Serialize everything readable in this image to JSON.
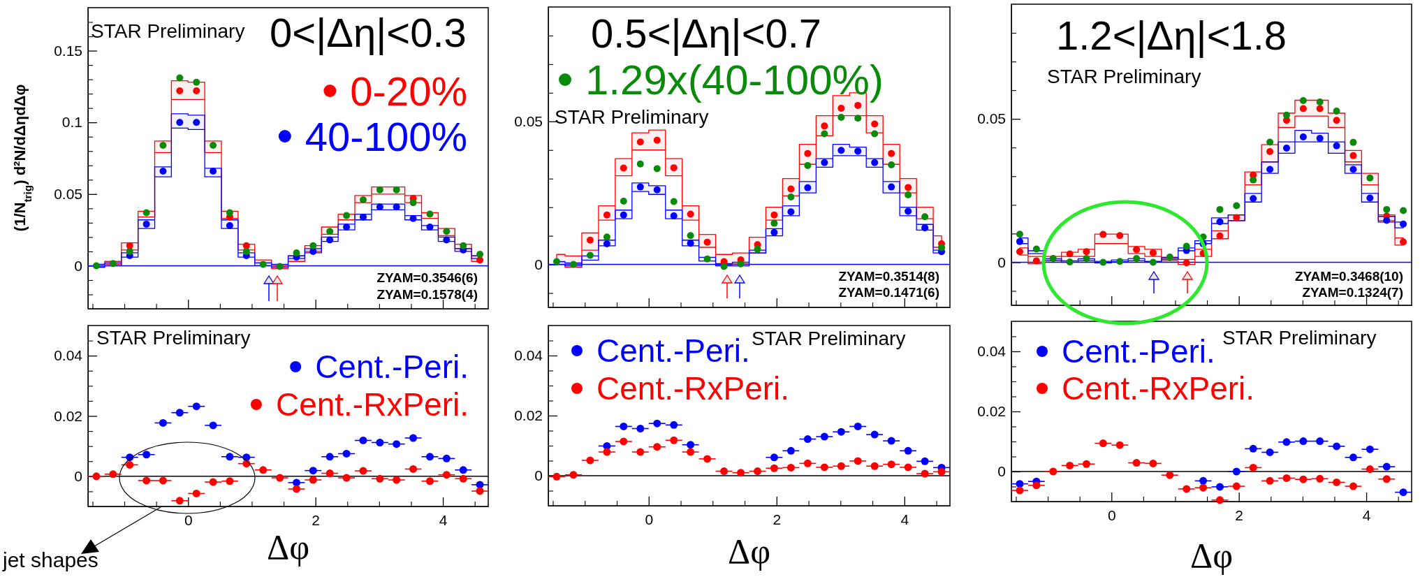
{
  "chart_data": [
    {
      "type": "scatter",
      "title": "0<|Δη|<0.3",
      "ylabel": "(1/N$_{trig}$) d²N/dΔηdΔφ",
      "xlim": [
        -1.571,
        4.712
      ],
      "ylim": [
        -0.03,
        0.18
      ],
      "tick_labels": "y",
      "marker": "circle",
      "legend": "top right",
      "grid": false,
      "xticks": [
        {
          "value": -1.5,
          "label": null
        },
        {
          "value": -1,
          "label": null
        },
        {
          "value": -0.5,
          "label": null
        },
        0,
        {
          "value": 0.5,
          "label": null
        },
        {
          "value": 1,
          "label": null
        },
        {
          "value": 1.5,
          "label": null
        },
        2,
        {
          "value": 2.5,
          "label": null
        },
        {
          "value": 3,
          "label": null
        },
        {
          "value": 3.5,
          "label": null
        },
        4,
        {
          "value": 4.5,
          "label": null
        }
      ],
      "yticks": [
        {
          "value": -0.02,
          "label": null
        },
        {
          "value": -0.01,
          "label": null
        },
        0,
        {
          "value": 0.01,
          "label": null
        },
        {
          "value": 0.02,
          "label": null
        },
        {
          "value": 0.03,
          "label": null
        },
        {
          "value": 0.04,
          "label": null
        },
        0.05,
        {
          "value": 0.06,
          "label": null
        },
        {
          "value": 0.07,
          "label": null
        },
        {
          "value": 0.08,
          "label": null
        },
        {
          "value": 0.09,
          "label": null
        },
        0.1,
        {
          "value": 0.11,
          "label": null
        },
        {
          "value": 0.12,
          "label": null
        },
        {
          "value": 0.13,
          "label": null
        },
        {
          "value": 0.14,
          "label": null
        },
        0.15,
        {
          "value": 0.16,
          "label": null
        },
        {
          "value": 0.17,
          "label": null
        }
      ],
      "x": [
        -1.44,
        -1.178,
        -0.916,
        -0.654,
        -0.393,
        -0.131,
        0.131,
        0.393,
        0.654,
        0.916,
        1.178,
        1.44,
        1.702,
        1.963,
        2.225,
        2.487,
        2.749,
        3.011,
        3.272,
        3.534,
        3.796,
        4.058,
        4.32,
        4.581
      ],
      "ref_lines": [
        {
          "axis": "y",
          "value": 0,
          "color": "#0000ff"
        }
      ],
      "annotations": [
        "STAR Preliminary",
        "ZYAM=0.3546(6)",
        "ZYAM=0.1578(4)"
      ],
      "series": [
        {
          "name": "0-20%",
          "color": "#ff0000",
          "values": [
            null,
            null,
            0.014,
            null,
            null,
            0.122,
            0.122,
            null,
            0.034,
            0.014,
            null,
            null,
            null,
            null,
            null,
            null,
            null,
            null,
            null,
            0.047,
            null,
            null,
            null,
            0.004
          ],
          "lower": [
            -0.001,
            0.001,
            0.011,
            0.034,
            0.079,
            0.116,
            0.116,
            0.079,
            0.033,
            0.011,
            0.002,
            -0.002,
            0.003,
            0.01,
            0.022,
            0.032,
            0.044,
            0.05,
            0.05,
            0.044,
            0.033,
            0.021,
            0.012,
            0.003
          ],
          "upper": [
            0.001,
            0.003,
            0.016,
            0.038,
            0.087,
            0.129,
            0.128,
            0.087,
            0.038,
            0.015,
            0.004,
            0,
            0.007,
            0.014,
            0.027,
            0.036,
            0.049,
            0.055,
            0.055,
            0.049,
            0.037,
            0.026,
            0.015,
            0.007
          ]
        },
        {
          "name": "40-100%",
          "color": "#0000ff",
          "values": [
            null,
            null,
            0.007,
            0.029,
            0.066,
            0.1,
            0.1,
            0.066,
            0.028,
            0.007,
            null,
            null,
            0.006,
            0.01,
            0.018,
            0.027,
            0.034,
            0.041,
            0.041,
            0.033,
            0.027,
            0.018,
            0.011,
            null
          ],
          "lower": [
            -0.001,
            0,
            0.006,
            0.026,
            0.062,
            0.096,
            0.095,
            0.062,
            0.026,
            0.006,
            0,
            -0.001,
            0.005,
            0.009,
            0.017,
            0.025,
            0.032,
            0.039,
            0.039,
            0.032,
            0.025,
            0.017,
            0.01,
            0.005
          ],
          "upper": [
            0.001,
            0.002,
            0.009,
            0.032,
            0.069,
            0.106,
            0.105,
            0.068,
            0.032,
            0.009,
            0.002,
            0.001,
            0.007,
            0.012,
            0.02,
            0.029,
            0.036,
            0.043,
            0.043,
            0.035,
            0.028,
            0.02,
            0.012,
            0.007
          ]
        },
        {
          "color": "#0a8a0a",
          "values": [
            0,
            0.0015,
            0.01,
            0.037,
            0.084,
            0.131,
            0.128,
            0.084,
            0.037,
            0.01,
            0.001,
            -0.0005,
            0.009,
            0.014,
            0.024,
            0.035,
            0.046,
            0.053,
            0.053,
            0.044,
            0.036,
            0.024,
            0.014,
            0.008
          ]
        }
      ]
    },
    {
      "type": "scatter",
      "title": "0.5<|Δη|<0.7",
      "xlim": [
        -1.571,
        4.712
      ],
      "ylim": [
        -0.015,
        0.09
      ],
      "tick_labels": "y",
      "marker": "circle",
      "legend": "top left",
      "grid": false,
      "xticks": [
        {
          "value": -1.5,
          "label": null
        },
        {
          "value": -1,
          "label": null
        },
        {
          "value": -0.5,
          "label": null
        },
        0,
        {
          "value": 0.5,
          "label": null
        },
        {
          "value": 1,
          "label": null
        },
        {
          "value": 1.5,
          "label": null
        },
        2,
        {
          "value": 2.5,
          "label": null
        },
        {
          "value": 3,
          "label": null
        },
        {
          "value": 3.5,
          "label": null
        },
        4,
        {
          "value": 4.5,
          "label": null
        }
      ],
      "yticks": [
        {
          "value": -0.01,
          "label": null
        },
        0,
        {
          "value": 0.01,
          "label": null
        },
        {
          "value": 0.02,
          "label": null
        },
        {
          "value": 0.03,
          "label": null
        },
        {
          "value": 0.04,
          "label": null
        },
        0.05,
        {
          "value": 0.06,
          "label": null
        },
        {
          "value": 0.07,
          "label": null
        },
        {
          "value": 0.08,
          "label": null
        }
      ],
      "x": [
        -1.44,
        -1.178,
        -0.916,
        -0.654,
        -0.393,
        -0.131,
        0.131,
        0.393,
        0.654,
        0.916,
        1.178,
        1.44,
        1.702,
        1.963,
        2.225,
        2.487,
        2.749,
        3.011,
        3.272,
        3.534,
        3.796,
        4.058,
        4.32,
        4.581
      ],
      "ref_lines": [
        {
          "axis": "y",
          "value": 0,
          "color": "#0000ff"
        }
      ],
      "annotations": [
        "STAR Preliminary",
        "ZYAM=0.3514(8)",
        "ZYAM=0.1471(6)"
      ],
      "series": [
        {
          "color": "#ff0000",
          "values": [
            null,
            null,
            0.0085,
            0.0173,
            0.0337,
            0.0428,
            0.0434,
            0.0338,
            0.0176,
            0.0078,
            0.001,
            0.0016,
            0.0069,
            0.0173,
            0.0264,
            0.0388,
            0.0484,
            0.0546,
            0.0556,
            0.0491,
            0.0388,
            0.0269,
            null,
            0.0072
          ],
          "lower": [
            0,
            -0.001,
            0.005,
            0.0155,
            0.031,
            0.04,
            0.04,
            0.031,
            0.0155,
            0.006,
            -0.0003,
            0.0002,
            0.004,
            0.0155,
            0.024,
            0.035,
            0.045,
            0.052,
            0.052,
            0.046,
            0.035,
            0.025,
            0.016,
            0.006
          ],
          "upper": [
            0.0035,
            0.003,
            0.011,
            0.0205,
            0.037,
            0.046,
            0.047,
            0.037,
            0.0205,
            0.0105,
            0.0035,
            0.004,
            0.0095,
            0.02,
            0.03,
            0.042,
            0.052,
            0.059,
            0.06,
            0.052,
            0.042,
            0.03,
            0.02,
            0.01
          ]
        },
        {
          "color": "#0000ff",
          "values": [
            null,
            null,
            null,
            0.0072,
            0.0173,
            0.0271,
            0.0261,
            0.017,
            0.0074,
            null,
            null,
            null,
            null,
            0.0112,
            0.0184,
            0.0268,
            0.0356,
            0.0399,
            0.0396,
            0.0356,
            0.0271,
            0.0186,
            0.0128,
            0.0045
          ],
          "lower": [
            0,
            -0.0005,
            0.0015,
            0.0065,
            0.016,
            0.0255,
            0.0245,
            0.016,
            0.0065,
            0.0012,
            -0.0005,
            -0.0005,
            0.004,
            0.01,
            0.017,
            0.025,
            0.034,
            0.038,
            0.038,
            0.034,
            0.025,
            0.017,
            0.012,
            0.004
          ],
          "upper": [
            0.001,
            0.0005,
            0.003,
            0.0085,
            0.019,
            0.0285,
            0.0275,
            0.019,
            0.0085,
            0.0025,
            0.0003,
            0.0008,
            0.005,
            0.0125,
            0.0205,
            0.029,
            0.037,
            0.042,
            0.041,
            0.037,
            0.029,
            0.02,
            0.014,
            0.005
          ]
        },
        {
          "name": "1.29x(40-100%)",
          "color": "#0a8a0a",
          "values": [
            0.001,
            0,
            0.0032,
            0.0096,
            0.0221,
            0.0351,
            0.0335,
            0.022,
            0.0101,
            0.0019,
            -0.0007,
            0.0002,
            0.0053,
            0.0144,
            0.0236,
            0.0346,
            0.0457,
            0.0514,
            0.0511,
            0.0457,
            0.0348,
            0.0243,
            0.0167,
            0.0059
          ]
        }
      ]
    },
    {
      "type": "scatter",
      "title": "1.2<|Δη|<1.8",
      "xlim": [
        -1.571,
        4.712
      ],
      "ylim": [
        -0.015,
        0.09
      ],
      "tick_labels": "y",
      "marker": "circle",
      "grid": false,
      "xticks": [
        {
          "value": -1.5,
          "label": null
        },
        {
          "value": -1,
          "label": null
        },
        {
          "value": -0.5,
          "label": null
        },
        0,
        {
          "value": 0.5,
          "label": null
        },
        {
          "value": 1,
          "label": null
        },
        {
          "value": 1.5,
          "label": null
        },
        2,
        {
          "value": 2.5,
          "label": null
        },
        {
          "value": 3,
          "label": null
        },
        {
          "value": 3.5,
          "label": null
        },
        4,
        {
          "value": 4.5,
          "label": null
        }
      ],
      "yticks": [
        {
          "value": -0.01,
          "label": null
        },
        0,
        {
          "value": 0.01,
          "label": null
        },
        {
          "value": 0.02,
          "label": null
        },
        {
          "value": 0.03,
          "label": null
        },
        {
          "value": 0.04,
          "label": null
        },
        0.05,
        {
          "value": 0.06,
          "label": null
        },
        {
          "value": 0.07,
          "label": null
        },
        {
          "value": 0.08,
          "label": null
        }
      ],
      "x": [
        -1.44,
        -1.178,
        -0.916,
        -0.654,
        -0.393,
        -0.131,
        0.131,
        0.393,
        0.654,
        0.916,
        1.178,
        1.44,
        1.702,
        1.963,
        2.225,
        2.487,
        2.749,
        3.011,
        3.272,
        3.534,
        3.796,
        4.058,
        4.32,
        4.581
      ],
      "ref_lines": [
        {
          "axis": "y",
          "value": 0,
          "color": "#0000ff"
        }
      ],
      "annotations": [
        "STAR Preliminary",
        "ZYAM=0.3468(10)",
        "ZYAM=0.1324(7)"
      ],
      "series": [
        {
          "color": "#ff0000",
          "values": [
            0.0037,
            0.0005,
            null,
            0.0029,
            0.0037,
            0.0097,
            0.0093,
            0.0044,
            0.0033,
            null,
            -0.0002,
            0.0031,
            0.0092,
            0.0156,
            0.0304,
            0.0386,
            0.0495,
            0.0536,
            0.0536,
            0.0495,
            0.0372,
            null,
            0.0161,
            0.0071
          ],
          "lower": [
            0.0025,
            -0.0005,
            0.0005,
            0.002,
            0.002,
            0.0065,
            0.0065,
            0.003,
            0.002,
            0.0005,
            -0.0008,
            0.002,
            0.0082,
            0.0145,
            0.027,
            0.035,
            0.047,
            0.051,
            0.051,
            0.047,
            0.035,
            0.027,
            0.0145,
            0.006
          ],
          "upper": [
            0.005,
            0.002,
            0.002,
            0.0035,
            0.0045,
            0.0098,
            0.0098,
            0.0055,
            0.0045,
            0.0018,
            0.001,
            0.0045,
            0.011,
            0.0165,
            0.0315,
            0.041,
            0.052,
            0.0565,
            0.0565,
            0.052,
            0.039,
            0.031,
            0.0165,
            0.0085
          ]
        },
        {
          "color": "#0000ff",
          "values": [
            0.0072,
            null,
            null,
            null,
            null,
            null,
            null,
            null,
            null,
            null,
            0.0041,
            0.0064,
            0.0141,
            null,
            0.0222,
            0.0324,
            0.0398,
            0.0437,
            0.0432,
            0.0406,
            0.0324,
            0.0224,
            0.0146,
            0.0133
          ],
          "lower": [
            0.0065,
            0.003,
            0.0005,
            0,
            0.0005,
            -0.0002,
            0.0002,
            0.0005,
            0,
            0.001,
            0.004,
            0.0065,
            0.0135,
            0.0145,
            0.021,
            0.031,
            0.038,
            0.042,
            0.042,
            0.038,
            0.031,
            0.021,
            0.014,
            0.012
          ],
          "upper": [
            0.0085,
            0.004,
            0.0012,
            0.0005,
            0.0012,
            0.0003,
            0.0008,
            0.0013,
            0.0003,
            0.0015,
            0.005,
            0.0075,
            0.0155,
            0.0165,
            0.024,
            0.035,
            0.042,
            0.046,
            0.045,
            0.042,
            0.034,
            0.024,
            0.016,
            0.014
          ]
        },
        {
          "color": "#0a8a0a",
          "values": [
            0.0098,
            0.0046,
            0.0013,
            0.0001,
            0.0013,
            0,
            0.0003,
            0.0013,
            0,
            0.0018,
            0.0056,
            0.0088,
            0.0184,
            0.0197,
            0.0287,
            0.0419,
            0.0513,
            0.0564,
            0.0559,
            0.0527,
            0.0418,
            0.0294,
            0.0184,
            0.018
          ]
        }
      ]
    },
    {
      "type": "scatter",
      "xlabel": "Δφ",
      "xlim": [
        -1.571,
        4.712
      ],
      "ylim": [
        -0.01,
        0.05
      ],
      "marker": "circle",
      "legend": "top right",
      "grid": false,
      "xticks": [
        {
          "value": -1.5,
          "label": null
        },
        {
          "value": -1,
          "label": null
        },
        {
          "value": -0.5,
          "label": null
        },
        0,
        {
          "value": 0.5,
          "label": null
        },
        {
          "value": 1,
          "label": null
        },
        {
          "value": 1.5,
          "label": null
        },
        2,
        {
          "value": 2.5,
          "label": null
        },
        {
          "value": 3,
          "label": null
        },
        {
          "value": 3.5,
          "label": null
        },
        4,
        {
          "value": 4.5,
          "label": null
        }
      ],
      "yticks": [
        {
          "value": -0.005,
          "label": null
        },
        0,
        {
          "value": 0.005,
          "label": null
        },
        {
          "value": 0.01,
          "label": null
        },
        {
          "value": 0.015,
          "label": null
        },
        0.02,
        {
          "value": 0.025,
          "label": null
        },
        {
          "value": 0.03,
          "label": null
        },
        {
          "value": 0.035,
          "label": null
        },
        0.04,
        {
          "value": 0.045,
          "label": null
        }
      ],
      "x": [
        -1.44,
        -1.178,
        -0.916,
        -0.654,
        -0.393,
        -0.131,
        0.131,
        0.393,
        0.654,
        0.916,
        1.178,
        1.44,
        1.702,
        1.963,
        2.225,
        2.487,
        2.749,
        3.011,
        3.272,
        3.534,
        3.796,
        4.058,
        4.32,
        4.581
      ],
      "ref_lines": [
        {
          "axis": "y",
          "value": 0,
          "color": "#000000"
        }
      ],
      "annotations": [
        "STAR Preliminary",
        "jet shapes"
      ],
      "series": [
        {
          "name": "Cent.-Peri.",
          "color": "#0000ff",
          "values": [
            null,
            null,
            0.0063,
            0.0072,
            0.0177,
            0.0211,
            0.0232,
            0.0169,
            0.0065,
            0.0063,
            null,
            null,
            -0.0021,
            0.0019,
            0.0065,
            0.0075,
            0.0119,
            0.0112,
            0.0107,
            0.0127,
            0.0065,
            0.0059,
            0.0021,
            -0.0028
          ],
          "xerrors": [
            null,
            null,
            0.131,
            0.131,
            0.131,
            0.131,
            0.131,
            0.131,
            0.131,
            0.131,
            null,
            null,
            0.131,
            0.131,
            0.131,
            0.131,
            0.131,
            0.131,
            0.131,
            0.131,
            0.131,
            0.131,
            0.131,
            0.131
          ]
        },
        {
          "name": "Cent.-RxPeri.",
          "color": "#ff0000",
          "values": [
            0,
            0.0007,
            0.0038,
            -0.0014,
            -0.0014,
            -0.0081,
            -0.0057,
            -0.0019,
            -0.0016,
            0.0042,
            0.0021,
            -0.0005,
            -0.0042,
            -0.0012,
            0.001,
            -0.0005,
            0.0018,
            -0.0008,
            -0.0012,
            0.0024,
            -0.0016,
            0.0005,
            -0.0008,
            -0.0049
          ],
          "xerrors": [
            0.131,
            0.131,
            0.131,
            0.131,
            0.131,
            0.131,
            0.131,
            0.131,
            0.131,
            0.131,
            0.131,
            0.131,
            0.131,
            0.131,
            0.131,
            0.131,
            0.131,
            0.131,
            0.131,
            0.131,
            0.131,
            0.131,
            0.131,
            0.131
          ]
        }
      ]
    },
    {
      "type": "scatter",
      "xlabel": "Δφ",
      "xlim": [
        -1.571,
        4.712
      ],
      "ylim": [
        -0.01,
        0.05
      ],
      "marker": "circle",
      "legend": "top left",
      "grid": false,
      "xticks": [
        {
          "value": -1.5,
          "label": null
        },
        {
          "value": -1,
          "label": null
        },
        {
          "value": -0.5,
          "label": null
        },
        0,
        {
          "value": 0.5,
          "label": null
        },
        {
          "value": 1,
          "label": null
        },
        {
          "value": 1.5,
          "label": null
        },
        2,
        {
          "value": 2.5,
          "label": null
        },
        {
          "value": 3,
          "label": null
        },
        {
          "value": 3.5,
          "label": null
        },
        4,
        {
          "value": 4.5,
          "label": null
        }
      ],
      "yticks": [
        {
          "value": -0.005,
          "label": null
        },
        0,
        {
          "value": 0.005,
          "label": null
        },
        {
          "value": 0.01,
          "label": null
        },
        {
          "value": 0.015,
          "label": null
        },
        0.02,
        {
          "value": 0.025,
          "label": null
        },
        {
          "value": 0.03,
          "label": null
        },
        {
          "value": 0.035,
          "label": null
        },
        0.04,
        {
          "value": 0.045,
          "label": null
        }
      ],
      "x": [
        -1.44,
        -1.178,
        -0.916,
        -0.654,
        -0.393,
        -0.131,
        0.131,
        0.393,
        0.654,
        0.916,
        1.178,
        1.44,
        1.702,
        1.963,
        2.225,
        2.487,
        2.749,
        3.011,
        3.272,
        3.534,
        3.796,
        4.058,
        4.32,
        4.581
      ],
      "ref_lines": [
        {
          "axis": "y",
          "value": 0,
          "color": "#000000"
        }
      ],
      "annotations": [
        "STAR Preliminary"
      ],
      "series": [
        {
          "name": "Cent.-Peri.",
          "color": "#0000ff",
          "values": [
            null,
            null,
            null,
            0.0099,
            0.0164,
            0.0157,
            0.0174,
            0.0169,
            0.0103,
            null,
            null,
            null,
            null,
            0.0061,
            0.0083,
            0.0122,
            0.013,
            0.0146,
            0.0164,
            0.0137,
            0.0116,
            0.0083,
            0.0048,
            0.0027
          ],
          "xerrors": [
            null,
            null,
            null,
            0.131,
            0.131,
            0.131,
            0.131,
            0.131,
            0.131,
            null,
            null,
            null,
            null,
            0.131,
            0.131,
            0.131,
            0.131,
            0.131,
            0.131,
            0.131,
            0.131,
            0.131,
            0.131,
            0.131
          ]
        },
        {
          "name": "Cent.-RxPeri.",
          "color": "#ff0000",
          "values": [
            -0.0003,
            0.0003,
            0.0051,
            0.0079,
            0.0114,
            0.0079,
            0.0096,
            0.0118,
            0.0079,
            0.0056,
            0.0015,
            0.001,
            0.0015,
            0.0025,
            0.0027,
            0.0041,
            0.0028,
            0.0032,
            0.0049,
            0.0032,
            0.0038,
            0.0028,
            0.0007,
            0.0013
          ],
          "xerrors": [
            0.131,
            0.131,
            0.131,
            0.131,
            0.131,
            0.131,
            0.131,
            0.131,
            0.131,
            0.131,
            0.131,
            0.131,
            0.131,
            0.131,
            0.131,
            0.131,
            0.131,
            0.131,
            0.131,
            0.131,
            0.131,
            0.131,
            0.131,
            0.131
          ]
        }
      ]
    },
    {
      "type": "scatter",
      "xlabel": "Δφ",
      "xlim": [
        -1.571,
        4.712
      ],
      "ylim": [
        -0.01,
        0.05
      ],
      "marker": "circle",
      "legend": "top left",
      "grid": false,
      "xticks": [
        {
          "value": -1.5,
          "label": null
        },
        {
          "value": -1,
          "label": null
        },
        {
          "value": -0.5,
          "label": null
        },
        0,
        {
          "value": 0.5,
          "label": null
        },
        {
          "value": 1,
          "label": null
        },
        {
          "value": 1.5,
          "label": null
        },
        2,
        {
          "value": 2.5,
          "label": null
        },
        {
          "value": 3,
          "label": null
        },
        {
          "value": 3.5,
          "label": null
        },
        4,
        {
          "value": 4.5,
          "label": null
        }
      ],
      "yticks": [
        {
          "value": -0.005,
          "label": null
        },
        0,
        {
          "value": 0.005,
          "label": null
        },
        {
          "value": 0.01,
          "label": null
        },
        {
          "value": 0.015,
          "label": null
        },
        0.02,
        {
          "value": 0.025,
          "label": null
        },
        {
          "value": 0.03,
          "label": null
        },
        {
          "value": 0.035,
          "label": null
        },
        0.04,
        {
          "value": 0.045,
          "label": null
        }
      ],
      "x": [
        -1.44,
        -1.178,
        -0.916,
        -0.654,
        -0.393,
        -0.131,
        0.131,
        0.393,
        0.654,
        0.916,
        1.178,
        1.44,
        1.702,
        1.963,
        2.225,
        2.487,
        2.749,
        3.011,
        3.272,
        3.534,
        3.796,
        4.058,
        4.32,
        4.581
      ],
      "ref_lines": [
        {
          "axis": "y",
          "value": 0,
          "color": "#000000"
        }
      ],
      "annotations": [
        "STAR Preliminary"
      ],
      "series": [
        {
          "name": "Cent.-Peri.",
          "color": "#0000ff",
          "values": [
            -0.0041,
            -0.0033,
            null,
            null,
            null,
            null,
            null,
            null,
            null,
            null,
            null,
            -0.0031,
            -0.0051,
            0,
            0.0076,
            0.0064,
            0.0098,
            0.0101,
            0.0101,
            0.0084,
            0.0047,
            0.0074,
            0.0016,
            -0.0069
          ],
          "xerrors": [
            0.131,
            0.131,
            null,
            null,
            null,
            null,
            null,
            null,
            null,
            null,
            null,
            0.131,
            0.131,
            0.131,
            0.131,
            0.131,
            0.131,
            0.131,
            0.131,
            0.131,
            0.131,
            0.131,
            0.131,
            0.131
          ]
        },
        {
          "name": "Cent.-RxPeri.",
          "color": "#ff0000",
          "values": [
            -0.0063,
            -0.0046,
            0,
            0.002,
            0.0025,
            0.0094,
            0.0088,
            0.0029,
            0.0027,
            -0.0012,
            -0.0058,
            -0.0054,
            -0.0095,
            -0.0049,
            0.0013,
            -0.0031,
            -0.0022,
            -0.0026,
            -0.0024,
            -0.0036,
            -0.0049,
            0.0008,
            -0.0025,
            null
          ],
          "xerrors": [
            0.131,
            0.131,
            0.131,
            0.131,
            0.131,
            0.131,
            0.131,
            0.131,
            0.131,
            0.131,
            0.131,
            0.131,
            0.131,
            0.131,
            0.131,
            0.131,
            0.131,
            0.131,
            0.131,
            0.131,
            0.131,
            0.131,
            0.131,
            null
          ]
        }
      ]
    }
  ]
}
